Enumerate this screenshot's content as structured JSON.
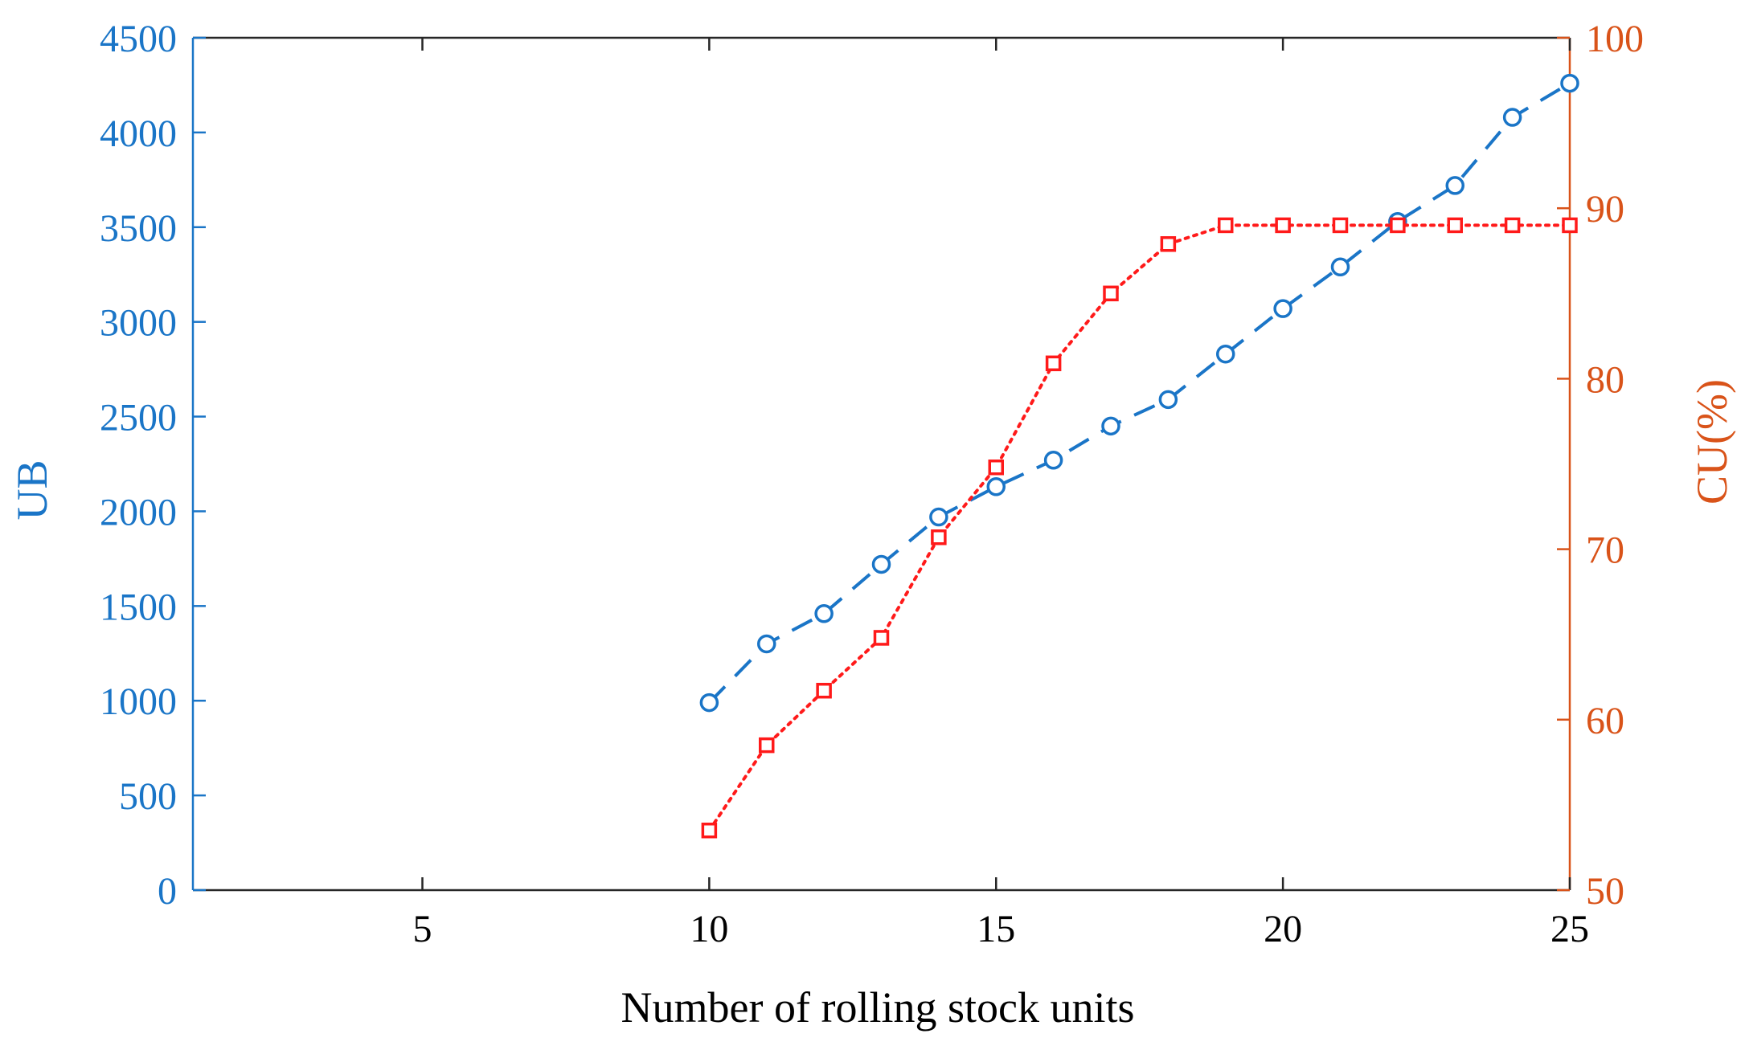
{
  "chart_data": {
    "type": "line",
    "title": "",
    "xlabel": "Number of rolling stock units",
    "ylabel_left": "UB",
    "ylabel_right": "CU(%)",
    "xlim": [
      1,
      25
    ],
    "ylim_left": [
      0,
      4500
    ],
    "ylim_right": [
      50,
      100
    ],
    "x_ticks": [
      5,
      10,
      15,
      20,
      25
    ],
    "y_left_ticks": [
      0,
      500,
      1000,
      1500,
      2000,
      2500,
      3000,
      3500,
      4000,
      4500
    ],
    "y_right_ticks": [
      50,
      60,
      70,
      80,
      90,
      100
    ],
    "grid": false,
    "legend": "none",
    "x": [
      10,
      11,
      12,
      13,
      14,
      15,
      16,
      17,
      18,
      19,
      20,
      21,
      22,
      23,
      24,
      25
    ],
    "series": [
      {
        "axis": "left",
        "marker": "circle",
        "line_style": "dashed",
        "color": "#1a75c7",
        "values": [
          990,
          1300,
          1460,
          1720,
          1970,
          2130,
          2270,
          2450,
          2590,
          2830,
          3070,
          3290,
          3530,
          3720,
          4080,
          4260
        ]
      },
      {
        "axis": "right",
        "marker": "square",
        "line_style": "dotted",
        "color": "#ff1a1a",
        "values": [
          53.5,
          58.5,
          61.7,
          64.8,
          70.7,
          74.8,
          80.9,
          85.0,
          87.9,
          89.0,
          89.0,
          89.0,
          89.0,
          89.0,
          89.0,
          89.0
        ]
      }
    ]
  },
  "colors": {
    "left_axis": "#1a75c7",
    "right_axis": "#d95319",
    "frame": "#262626"
  }
}
